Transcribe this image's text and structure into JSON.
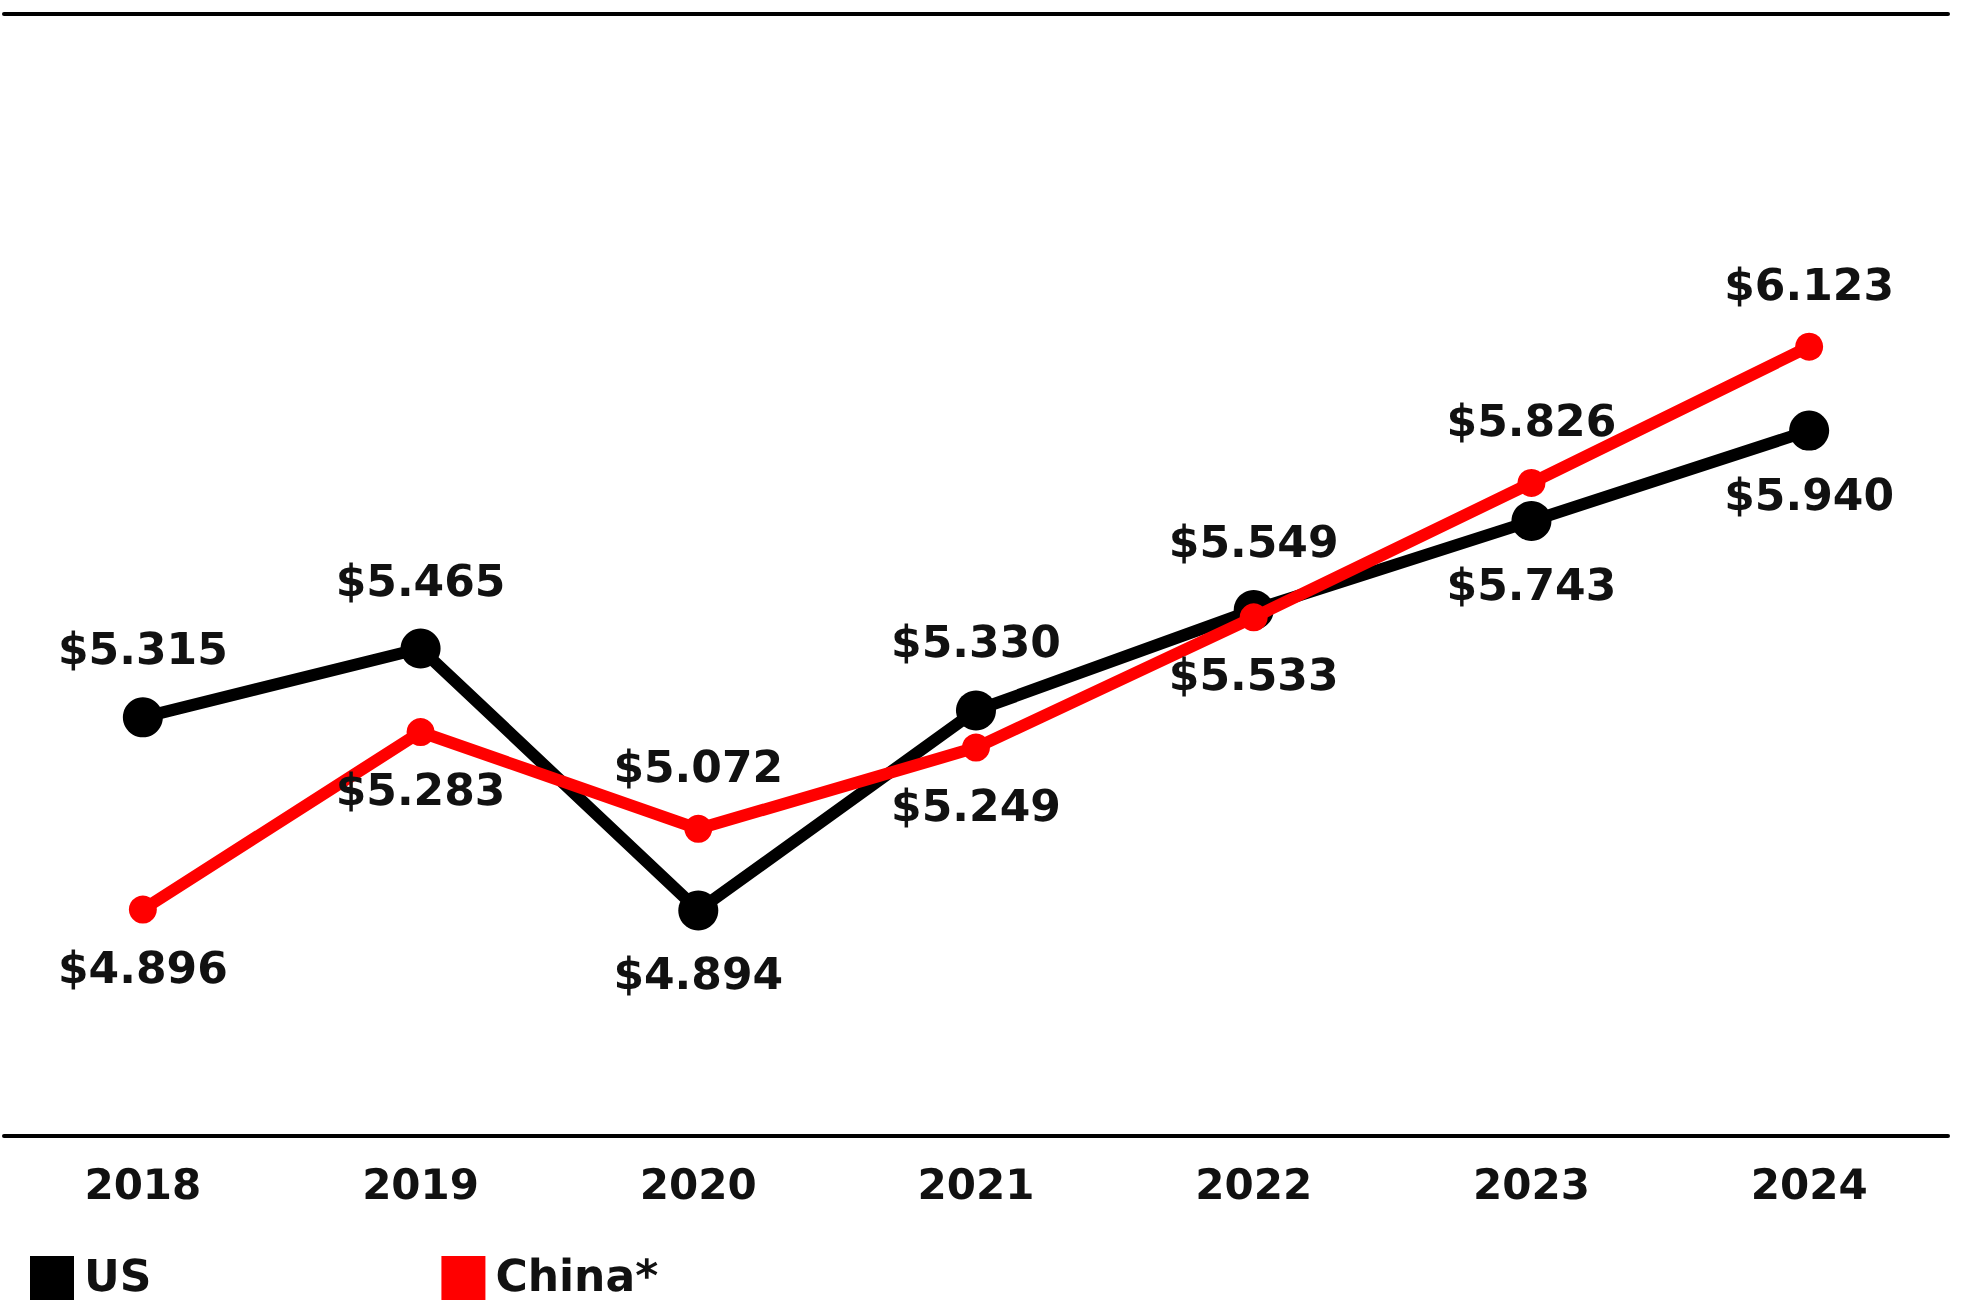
{
  "chart_data": {
    "type": "line",
    "categories": [
      "2018",
      "2019",
      "2020",
      "2021",
      "2022",
      "2023",
      "2024"
    ],
    "series": [
      {
        "name": "US",
        "color": "#000000",
        "values": [
          5.315,
          5.465,
          4.894,
          5.33,
          5.549,
          5.743,
          5.94
        ],
        "value_labels": [
          "$5.315",
          "$5.465",
          "$4.894",
          "$5.330",
          "$5.549",
          "$5.743",
          "$5.940"
        ]
      },
      {
        "name": "China*",
        "color": "#ff0000",
        "values": [
          4.896,
          5.283,
          5.072,
          5.249,
          5.533,
          5.826,
          6.123
        ],
        "value_labels": [
          "$4.896",
          "$5.283",
          "$5.072",
          "$5.249",
          "$5.533",
          "$5.826",
          "$6.123"
        ]
      }
    ],
    "marker": "circle",
    "line_style": "solid",
    "grid": false,
    "legend": "bottom left",
    "tick_labels": "x"
  }
}
